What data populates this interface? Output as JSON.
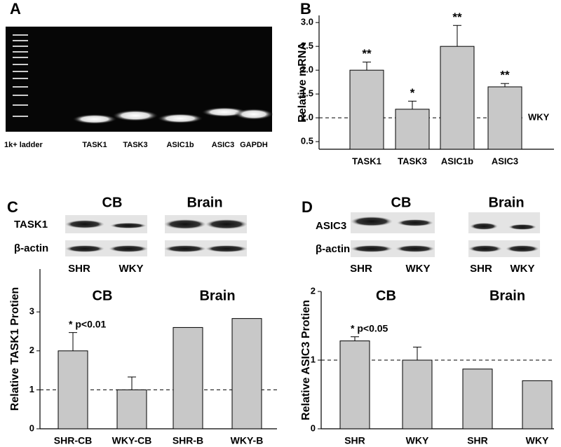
{
  "panel_labels": [
    "A",
    "B",
    "C",
    "D"
  ],
  "gel": {
    "lanes": [
      "1k+ ladder",
      "TASK1",
      "TASK3",
      "ASIC1b",
      "ASIC3",
      "GAPDH"
    ]
  },
  "blots": [
    {
      "groups": [
        "CB",
        "Brain"
      ],
      "rows": [
        "TASK1",
        "β-actin"
      ],
      "lanes": [
        "SHR",
        "WKY"
      ]
    },
    {
      "groups": [
        "CB",
        "Brain"
      ],
      "rows": [
        "ASIC3",
        "β-actin"
      ],
      "lanes": [
        "SHR",
        "WKY",
        "SHR",
        "WKY"
      ]
    }
  ],
  "chart_data": [
    {
      "type": "bar",
      "ylabel": "Relative mRNA",
      "color": "#c8c8c8",
      "categories": [
        "TASK1",
        "TASK3",
        "ASIC1b",
        "ASIC3"
      ],
      "values": [
        2.0,
        1.18,
        2.5,
        1.65
      ],
      "errors": [
        0.17,
        0.17,
        0.44,
        0.07
      ],
      "annotations": [
        "**",
        "*",
        "**",
        "**"
      ],
      "reference_line": {
        "value": 1,
        "label": "WKY"
      },
      "ylim": [
        0.34,
        3.15
      ],
      "yticks": [
        0.5,
        {
          "value": 1,
          "label": "1.0"
        },
        1.5,
        {
          "value": 2,
          "label": "2.0"
        },
        2.5,
        {
          "value": 3,
          "label": "3.0"
        }
      ]
    },
    {
      "type": "bar",
      "ylabel": "Relative TASK1 Protien",
      "color": "#c8c8c8",
      "groups": [
        "CB",
        "Brain"
      ],
      "categories": [
        "SHR-CB",
        "WKY-CB",
        "SHR-B",
        "WKY-B"
      ],
      "values": [
        2.0,
        1.0,
        2.6,
        2.83
      ],
      "errors": [
        0.47,
        0.33,
        null,
        null
      ],
      "annotations": [
        "* p<0.01",
        null,
        null,
        null
      ],
      "reference_line": {
        "value": 1
      },
      "ylim": [
        0,
        4.1
      ],
      "yticks": [
        0,
        1,
        2,
        3
      ]
    },
    {
      "type": "bar",
      "ylabel": "Relative ASIC3 Protien",
      "color": "#c8c8c8",
      "groups": [
        "CB",
        "Brain"
      ],
      "categories": [
        "SHR",
        "WKY",
        "SHR",
        "WKY"
      ],
      "values": [
        1.28,
        1.0,
        0.87,
        0.7
      ],
      "errors": [
        0.06,
        0.19,
        null,
        null
      ],
      "annotations": [
        "* p<0.05",
        null,
        null,
        null
      ],
      "reference_line": {
        "value": 1
      },
      "ylim": [
        0,
        2
      ],
      "yticks": [
        0,
        1,
        2
      ]
    }
  ]
}
